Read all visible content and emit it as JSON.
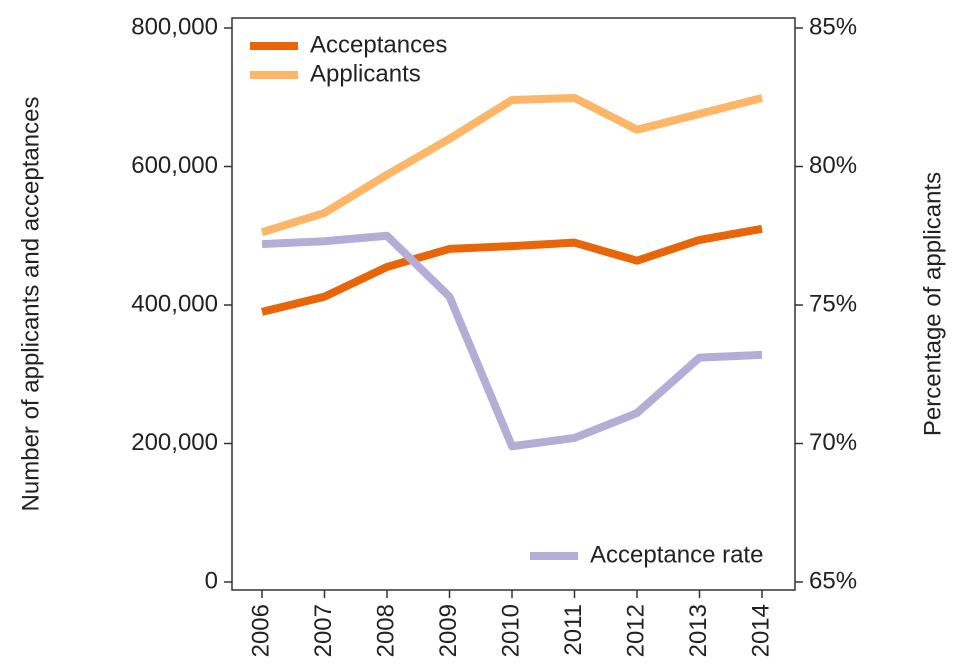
{
  "chart_data": {
    "type": "line",
    "x": [
      2006,
      2007,
      2008,
      2009,
      2010,
      2011,
      2012,
      2013,
      2014
    ],
    "xlim": [
      2006,
      2014
    ],
    "xticks": [
      2006,
      2007,
      2008,
      2009,
      2010,
      2011,
      2012,
      2013,
      2014
    ],
    "y_label": "Number of applicants and acceptances",
    "y2_label": "Percentage of applicants",
    "ylim": [
      0,
      800000
    ],
    "yticks": [
      0,
      {
        "value": 200000,
        "label": "200,000"
      },
      {
        "value": 400000,
        "label": "400,000"
      },
      {
        "value": 600000,
        "label": "600,000"
      },
      {
        "value": 800000,
        "label": "800,000"
      }
    ],
    "y2lim": [
      65,
      85
    ],
    "y2ticks": [
      {
        "value": 65,
        "label": "65%"
      },
      {
        "value": 70,
        "label": "70%"
      },
      {
        "value": 75,
        "label": "75%"
      },
      {
        "value": 80,
        "label": "80%"
      },
      {
        "value": 85,
        "label": "85%"
      }
    ],
    "grid": false,
    "series": [
      {
        "name": "Acceptances",
        "color": "#e8650a",
        "legend": "upper left",
        "values": [
          390000,
          412000,
          455000,
          481000,
          485000,
          490000,
          464000,
          494000,
          510000
        ]
      },
      {
        "name": "Applicants",
        "color": "#fdb567",
        "legend": "upper left",
        "values": [
          505000,
          533000,
          588000,
          640000,
          696000,
          699000,
          653000,
          676000,
          699000
        ]
      },
      {
        "name": "Acceptance rate",
        "color": "#b4aed6",
        "axis": "y2",
        "legend": "lower right",
        "values": [
          77.2,
          77.3,
          77.5,
          75.3,
          69.9,
          70.2,
          71.1,
          73.1,
          73.2
        ]
      }
    ]
  }
}
